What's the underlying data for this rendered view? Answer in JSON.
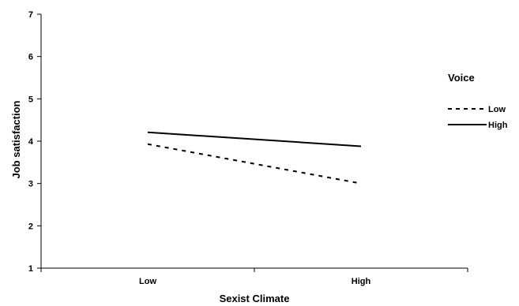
{
  "chart_data": {
    "type": "line",
    "categories": [
      "Low",
      "High"
    ],
    "series": [
      {
        "name": "Low",
        "values": [
          3.93,
          3.0
        ],
        "style": "dashed"
      },
      {
        "name": "High",
        "values": [
          4.21,
          3.88
        ],
        "style": "solid"
      }
    ],
    "title": "",
    "xlabel": "Sexist Climate",
    "ylabel": "Job satisfaction",
    "ylim": [
      1,
      7
    ],
    "yticks": [
      "1",
      "2",
      "3",
      "4",
      "5",
      "6",
      "7"
    ],
    "grid": false,
    "legend": {
      "title": "Voice",
      "position": "right"
    },
    "line_color": "#000000"
  }
}
